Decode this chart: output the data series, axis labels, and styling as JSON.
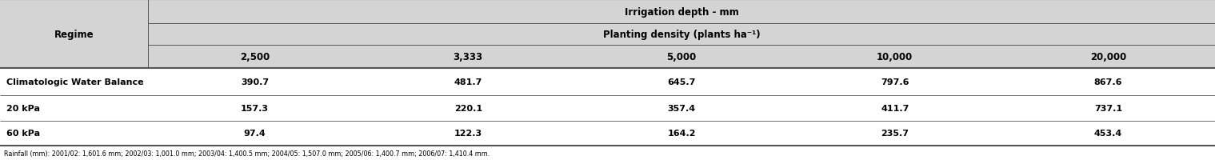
{
  "header1": "Irrigation depth - mm",
  "header2": "Planting density (plants ha⁻¹)",
  "col_header": "Regime",
  "densities": [
    "2,500",
    "3,333",
    "5,000",
    "10,000",
    "20,000"
  ],
  "rows": [
    {
      "regime": "Climatologic Water Balance",
      "values": [
        "390.7",
        "481.7",
        "645.7",
        "797.6",
        "867.6"
      ]
    },
    {
      "regime": "20 kPa",
      "values": [
        "157.3",
        "220.1",
        "357.4",
        "411.7",
        "737.1"
      ]
    },
    {
      "regime": "60 kPa",
      "values": [
        "97.4",
        "122.3",
        "164.2",
        "235.7",
        "453.4"
      ]
    }
  ],
  "footnote": "Rainfall (mm): 2001/02: 1,601.6 mm; 2002/03: 1,001.0 mm; 2003/04: 1,400.5 mm; 2004/05: 1,507.0 mm; 2005/06: 1,400.7 mm; 2006/07: 1,410.4 mm.",
  "bg_header": "#d4d4d4",
  "bg_data": "#ffffff",
  "text_color": "#000000",
  "border_color": "#555555",
  "fig_width": 15.19,
  "fig_height": 2.01,
  "dpi": 100
}
